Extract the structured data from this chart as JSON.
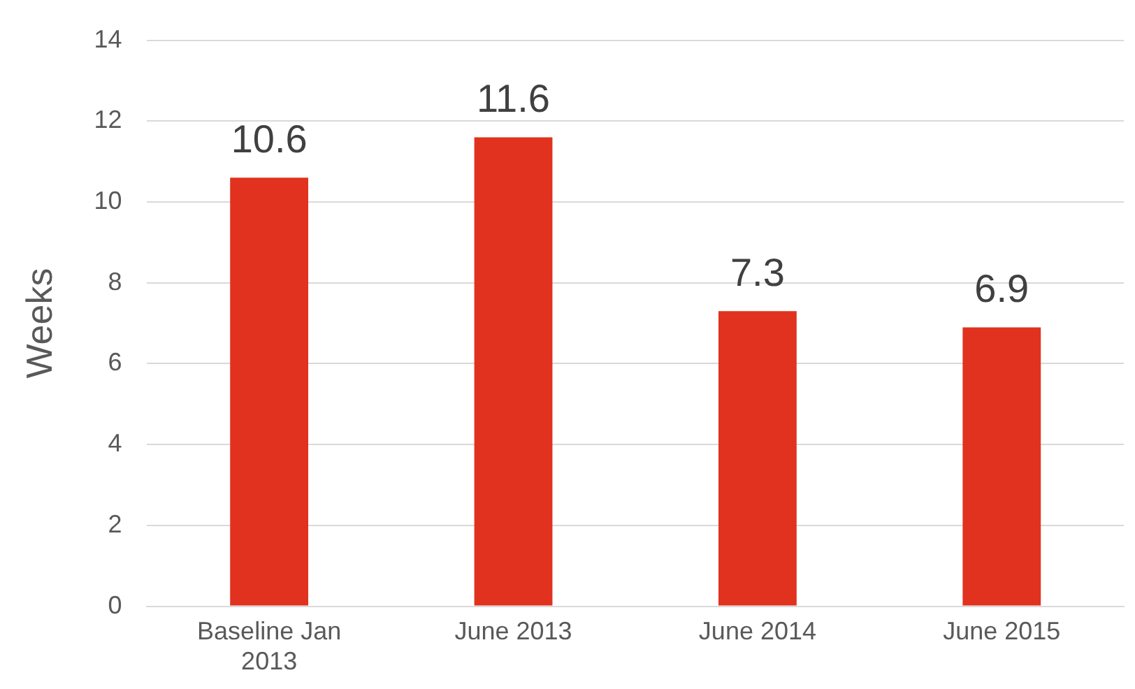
{
  "chart_data": {
    "type": "bar",
    "ylabel": "Weeks",
    "categories": [
      "Baseline Jan 2013",
      "June 2013",
      "June 2014",
      "June 2015"
    ],
    "values": [
      10.6,
      11.6,
      7.3,
      6.9
    ],
    "color": "#e0321e",
    "ylim": [
      0,
      14
    ],
    "yticks": [
      0,
      2,
      4,
      6,
      8,
      10,
      12,
      14
    ],
    "grid": "y",
    "data_labels": true,
    "legend": false
  }
}
